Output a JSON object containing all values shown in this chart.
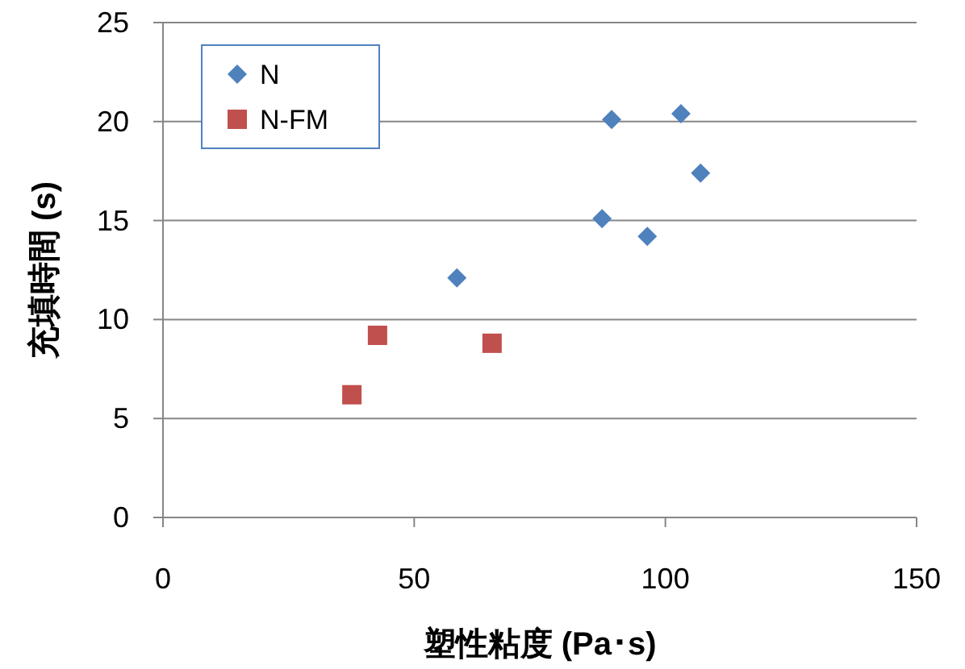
{
  "chart_data": {
    "type": "scatter",
    "xlabel": "塑性粘度 (Pa･s)",
    "ylabel": "充填時間 (s)",
    "xlim": [
      0,
      150
    ],
    "xticks": [
      0,
      50,
      100,
      150
    ],
    "ylim": [
      0,
      25
    ],
    "yticks": [
      0,
      5,
      10,
      15,
      20,
      25
    ],
    "grid": "y",
    "legend": "top left",
    "series": [
      {
        "name": "N",
        "color": "#4f81bd",
        "marker": "diamond",
        "x": [
          58.5,
          87.4,
          89.3,
          96.4,
          103.1,
          107.0
        ],
        "values": [
          12.1,
          15.1,
          20.1,
          14.2,
          20.4,
          17.4
        ]
      },
      {
        "name": "N-FM",
        "color": "#c0504d",
        "marker": "square",
        "x": [
          37.6,
          42.7,
          65.5
        ],
        "values": [
          6.2,
          9.2,
          8.8
        ]
      }
    ]
  }
}
